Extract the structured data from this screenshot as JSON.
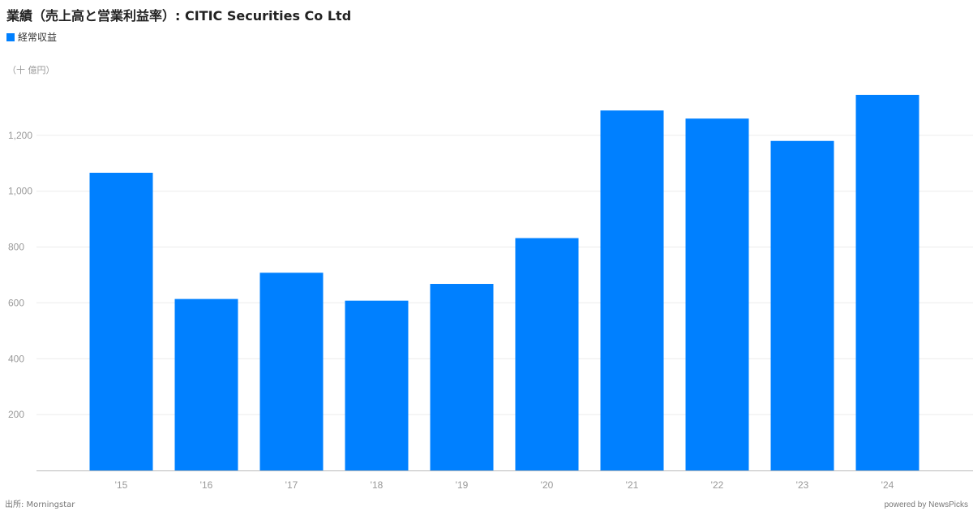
{
  "header": {
    "title": "業績（売上高と営業利益率）: CITIC Securities Co Ltd",
    "unit_label": "（十 億円）"
  },
  "legend": {
    "label": "経常収益",
    "color": "#0080ff"
  },
  "footer": {
    "source": "出所: Morningstar",
    "powered_by": "powered by NewsPicks"
  },
  "chart_data": {
    "type": "bar",
    "categories": [
      "'15",
      "'16",
      "'17",
      "'18",
      "'19",
      "'20",
      "'21",
      "'22",
      "'23",
      "'24"
    ],
    "series": [
      {
        "name": "経常収益",
        "values": [
          1066,
          614,
          708,
          608,
          668,
          832,
          1289,
          1260,
          1180,
          1345
        ],
        "color": "#0080ff"
      }
    ],
    "yticks": [
      200,
      400,
      600,
      800,
      1000,
      1200
    ],
    "ytick_labels": [
      "200",
      "400",
      "600",
      "800",
      "1,000",
      "1,200"
    ],
    "ylim": [
      0,
      1400
    ],
    "grid": true
  }
}
